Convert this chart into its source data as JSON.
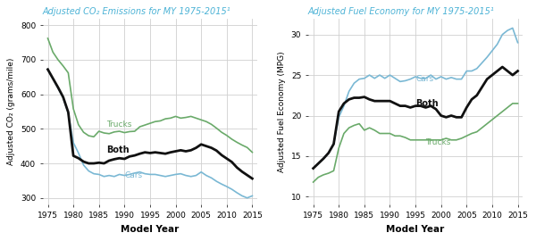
{
  "title_co2": "Adjusted CO₂ Emissions for MY 1975-2015¹",
  "title_mpg": "Adjusted Fuel Economy for MY 1975-2015¹",
  "ylabel_co2": "Adjusted CO₂ (grams/mile)",
  "ylabel_mpg": "Adjusted Fuel Economy (MPG)",
  "xlabel": "Model Year",
  "title_color": "#4db3d6",
  "years": [
    1975,
    1976,
    1977,
    1978,
    1979,
    1980,
    1981,
    1982,
    1983,
    1984,
    1985,
    1986,
    1987,
    1988,
    1989,
    1990,
    1991,
    1992,
    1993,
    1994,
    1995,
    1996,
    1997,
    1998,
    1999,
    2000,
    2001,
    2002,
    2003,
    2004,
    2005,
    2006,
    2007,
    2008,
    2009,
    2010,
    2011,
    2012,
    2013,
    2014,
    2015
  ],
  "co2_cars": [
    672,
    645,
    618,
    590,
    545,
    460,
    430,
    395,
    378,
    370,
    368,
    362,
    365,
    362,
    368,
    365,
    368,
    372,
    375,
    370,
    368,
    368,
    365,
    362,
    365,
    368,
    370,
    365,
    362,
    365,
    375,
    365,
    358,
    348,
    340,
    333,
    325,
    315,
    306,
    300,
    306
  ],
  "co2_trucks": [
    762,
    722,
    700,
    682,
    662,
    558,
    512,
    490,
    480,
    477,
    493,
    488,
    486,
    491,
    493,
    489,
    492,
    493,
    506,
    511,
    516,
    521,
    523,
    529,
    531,
    536,
    531,
    533,
    536,
    531,
    526,
    521,
    513,
    502,
    490,
    481,
    470,
    461,
    453,
    446,
    432
  ],
  "co2_both": [
    672,
    646,
    620,
    592,
    548,
    422,
    415,
    405,
    400,
    400,
    402,
    400,
    408,
    412,
    415,
    413,
    420,
    423,
    428,
    432,
    430,
    432,
    430,
    428,
    432,
    435,
    438,
    435,
    438,
    445,
    455,
    450,
    445,
    437,
    424,
    414,
    404,
    388,
    376,
    366,
    356
  ],
  "mpg_cars": [
    13.5,
    14.1,
    14.7,
    15.4,
    16.5,
    19.8,
    21.2,
    23.0,
    24.0,
    24.5,
    24.6,
    25.0,
    24.6,
    25.0,
    24.6,
    25.0,
    24.6,
    24.2,
    24.3,
    24.5,
    24.8,
    24.6,
    24.6,
    25.0,
    24.5,
    24.8,
    24.5,
    24.7,
    24.5,
    24.5,
    25.5,
    25.5,
    25.8,
    26.5,
    27.2,
    28.0,
    28.8,
    30.0,
    30.5,
    30.8,
    29.0
  ],
  "mpg_trucks": [
    11.8,
    12.4,
    12.7,
    12.9,
    13.2,
    16.0,
    17.8,
    18.5,
    18.8,
    19.0,
    18.2,
    18.5,
    18.2,
    17.8,
    17.8,
    17.8,
    17.5,
    17.5,
    17.3,
    17.0,
    17.0,
    17.0,
    17.0,
    17.0,
    17.0,
    17.0,
    17.2,
    17.0,
    17.0,
    17.2,
    17.5,
    17.8,
    18.0,
    18.5,
    19.0,
    19.5,
    20.0,
    20.5,
    21.0,
    21.5,
    21.5
  ],
  "mpg_both": [
    13.5,
    14.1,
    14.7,
    15.4,
    16.5,
    20.5,
    21.5,
    22.0,
    22.2,
    22.2,
    22.3,
    22.0,
    21.8,
    21.8,
    21.8,
    21.8,
    21.5,
    21.2,
    21.2,
    21.0,
    21.2,
    21.2,
    21.0,
    21.2,
    20.8,
    20.0,
    19.8,
    20.0,
    19.8,
    19.8,
    21.0,
    22.0,
    22.5,
    23.5,
    24.5,
    25.0,
    25.5,
    26.0,
    25.5,
    25.0,
    25.5
  ],
  "color_cars": "#7ab8d4",
  "color_trucks": "#6aaa6a",
  "color_both": "#111111",
  "lw_cars": 1.2,
  "lw_trucks": 1.2,
  "lw_both": 2.0,
  "co2_ylim": [
    280,
    820
  ],
  "co2_yticks": [
    300,
    400,
    500,
    600,
    700,
    800
  ],
  "mpg_ylim": [
    9,
    32
  ],
  "mpg_yticks": [
    10,
    15,
    20,
    25,
    30
  ],
  "xticks": [
    1975,
    1980,
    1985,
    1990,
    1995,
    2000,
    2005,
    2010,
    2015
  ],
  "grid_color": "#d0d0d0",
  "bg_color": "#ffffff"
}
